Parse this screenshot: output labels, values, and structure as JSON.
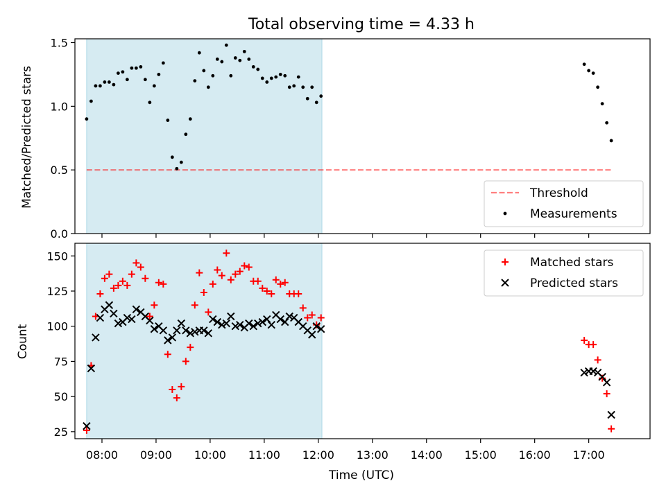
{
  "figure": {
    "title": "Total observing time = 4.33 h",
    "xlabel": "Time (UTC)",
    "x_ticks": [
      "08:00",
      "09:00",
      "10:00",
      "11:00",
      "12:00",
      "13:00",
      "14:00",
      "15:00",
      "16:00",
      "17:00"
    ]
  },
  "colors": {
    "span": "#add8e6",
    "threshold": "#ff0000",
    "measure": "#000000",
    "matched": "#ff0000",
    "predicted": "#000000"
  },
  "chart_data": [
    {
      "type": "scatter",
      "ylabel": "Matched/Predicted stars",
      "xlim": [
        "07:30",
        "18:08"
      ],
      "ylim": [
        0,
        1.53
      ],
      "y_ticks": [
        0,
        0.5,
        1.0,
        1.5
      ],
      "y_tick_labels": [
        "0.0",
        "0.5",
        "1.0",
        "1.5"
      ],
      "shaded_span": [
        "07:43",
        "12:04"
      ],
      "legend_position": "lower-right",
      "threshold": {
        "name": "Threshold",
        "value": 0.5,
        "x_range": [
          "07:43",
          "17:25"
        ],
        "style": "dashed"
      },
      "series": [
        {
          "name": "Measurements",
          "points": [
            [
              "07:43",
              0.9
            ],
            [
              "07:48",
              1.04
            ],
            [
              "07:53",
              1.16
            ],
            [
              "07:58",
              1.16
            ],
            [
              "08:03",
              1.19
            ],
            [
              "08:08",
              1.19
            ],
            [
              "08:13",
              1.17
            ],
            [
              "08:18",
              1.26
            ],
            [
              "08:23",
              1.27
            ],
            [
              "08:28",
              1.21
            ],
            [
              "08:33",
              1.3
            ],
            [
              "08:38",
              1.3
            ],
            [
              "08:43",
              1.31
            ],
            [
              "08:48",
              1.21
            ],
            [
              "08:53",
              1.03
            ],
            [
              "08:58",
              1.16
            ],
            [
              "09:03",
              1.25
            ],
            [
              "09:08",
              1.34
            ],
            [
              "09:13",
              0.89
            ],
            [
              "09:18",
              0.6
            ],
            [
              "09:23",
              0.51
            ],
            [
              "09:28",
              0.56
            ],
            [
              "09:33",
              0.78
            ],
            [
              "09:38",
              0.9
            ],
            [
              "09:43",
              1.2
            ],
            [
              "09:48",
              1.42
            ],
            [
              "09:53",
              1.28
            ],
            [
              "09:58",
              1.15
            ],
            [
              "10:03",
              1.24
            ],
            [
              "10:08",
              1.37
            ],
            [
              "10:13",
              1.35
            ],
            [
              "10:18",
              1.48
            ],
            [
              "10:23",
              1.24
            ],
            [
              "10:28",
              1.38
            ],
            [
              "10:33",
              1.36
            ],
            [
              "10:38",
              1.43
            ],
            [
              "10:43",
              1.37
            ],
            [
              "10:48",
              1.31
            ],
            [
              "10:53",
              1.29
            ],
            [
              "10:58",
              1.22
            ],
            [
              "11:03",
              1.19
            ],
            [
              "11:08",
              1.22
            ],
            [
              "11:13",
              1.23
            ],
            [
              "11:18",
              1.25
            ],
            [
              "11:23",
              1.24
            ],
            [
              "11:28",
              1.15
            ],
            [
              "11:33",
              1.16
            ],
            [
              "11:38",
              1.23
            ],
            [
              "11:43",
              1.15
            ],
            [
              "11:48",
              1.06
            ],
            [
              "11:53",
              1.15
            ],
            [
              "11:58",
              1.03
            ],
            [
              "12:03",
              1.08
            ],
            [
              "16:55",
              1.33
            ],
            [
              "17:00",
              1.28
            ],
            [
              "17:05",
              1.26
            ],
            [
              "17:10",
              1.15
            ],
            [
              "17:15",
              1.02
            ],
            [
              "17:20",
              0.87
            ],
            [
              "17:25",
              0.73
            ]
          ]
        }
      ]
    },
    {
      "type": "scatter",
      "ylabel": "Count",
      "xlim": [
        "07:30",
        "18:08"
      ],
      "ylim": [
        20,
        159
      ],
      "y_ticks": [
        25,
        50,
        75,
        100,
        125,
        150
      ],
      "y_tick_labels": [
        "25",
        "50",
        "75",
        "100",
        "125",
        "150"
      ],
      "shaded_span": [
        "07:43",
        "12:04"
      ],
      "legend_position": "upper-right",
      "series": [
        {
          "name": "Matched stars",
          "marker": "plus",
          "points": [
            [
              "07:43",
              26
            ],
            [
              "07:48",
              72
            ],
            [
              "07:53",
              107
            ],
            [
              "07:58",
              123
            ],
            [
              "08:03",
              134
            ],
            [
              "08:08",
              137
            ],
            [
              "08:13",
              127
            ],
            [
              "08:18",
              129
            ],
            [
              "08:23",
              132
            ],
            [
              "08:28",
              129
            ],
            [
              "08:33",
              137
            ],
            [
              "08:38",
              145
            ],
            [
              "08:43",
              142
            ],
            [
              "08:48",
              134
            ],
            [
              "08:53",
              107
            ],
            [
              "08:58",
              115
            ],
            [
              "09:03",
              131
            ],
            [
              "09:08",
              130
            ],
            [
              "09:13",
              80
            ],
            [
              "09:18",
              55
            ],
            [
              "09:23",
              49
            ],
            [
              "09:28",
              57
            ],
            [
              "09:33",
              75
            ],
            [
              "09:38",
              85
            ],
            [
              "09:43",
              115
            ],
            [
              "09:48",
              138
            ],
            [
              "09:53",
              124
            ],
            [
              "09:58",
              110
            ],
            [
              "10:03",
              130
            ],
            [
              "10:08",
              140
            ],
            [
              "10:13",
              136
            ],
            [
              "10:18",
              152
            ],
            [
              "10:23",
              133
            ],
            [
              "10:28",
              137
            ],
            [
              "10:33",
              139
            ],
            [
              "10:38",
              143
            ],
            [
              "10:43",
              142
            ],
            [
              "10:48",
              132
            ],
            [
              "10:53",
              132
            ],
            [
              "10:58",
              127
            ],
            [
              "11:03",
              125
            ],
            [
              "11:08",
              123
            ],
            [
              "11:13",
              133
            ],
            [
              "11:18",
              130
            ],
            [
              "11:23",
              131
            ],
            [
              "11:28",
              123
            ],
            [
              "11:33",
              123
            ],
            [
              "11:38",
              123
            ],
            [
              "11:43",
              113
            ],
            [
              "11:48",
              106
            ],
            [
              "11:53",
              108
            ],
            [
              "11:58",
              101
            ],
            [
              "12:03",
              106
            ],
            [
              "16:55",
              90
            ],
            [
              "17:00",
              87
            ],
            [
              "17:05",
              87
            ],
            [
              "17:10",
              76
            ],
            [
              "17:15",
              63
            ],
            [
              "17:20",
              52
            ],
            [
              "17:25",
              27
            ]
          ]
        },
        {
          "name": "Predicted stars",
          "marker": "cross",
          "points": [
            [
              "07:43",
              29
            ],
            [
              "07:48",
              70
            ],
            [
              "07:53",
              92
            ],
            [
              "07:58",
              106
            ],
            [
              "08:03",
              112
            ],
            [
              "08:08",
              115
            ],
            [
              "08:13",
              109
            ],
            [
              "08:18",
              102
            ],
            [
              "08:23",
              103
            ],
            [
              "08:28",
              106
            ],
            [
              "08:33",
              105
            ],
            [
              "08:38",
              112
            ],
            [
              "08:43",
              110
            ],
            [
              "08:48",
              107
            ],
            [
              "08:53",
              104
            ],
            [
              "08:58",
              98
            ],
            [
              "09:03",
              100
            ],
            [
              "09:08",
              97
            ],
            [
              "09:13",
              90
            ],
            [
              "09:18",
              92
            ],
            [
              "09:23",
              97
            ],
            [
              "09:28",
              102
            ],
            [
              "09:33",
              97
            ],
            [
              "09:38",
              95
            ],
            [
              "09:43",
              96
            ],
            [
              "09:48",
              97
            ],
            [
              "09:53",
              97
            ],
            [
              "09:58",
              95
            ],
            [
              "10:03",
              105
            ],
            [
              "10:08",
              103
            ],
            [
              "10:13",
              101
            ],
            [
              "10:18",
              102
            ],
            [
              "10:23",
              107
            ],
            [
              "10:28",
              100
            ],
            [
              "10:33",
              101
            ],
            [
              "10:38",
              99
            ],
            [
              "10:43",
              102
            ],
            [
              "10:48",
              100
            ],
            [
              "10:53",
              102
            ],
            [
              "10:58",
              103
            ],
            [
              "11:03",
              105
            ],
            [
              "11:08",
              101
            ],
            [
              "11:13",
              108
            ],
            [
              "11:18",
              105
            ],
            [
              "11:23",
              103
            ],
            [
              "11:28",
              107
            ],
            [
              "11:33",
              106
            ],
            [
              "11:38",
              103
            ],
            [
              "11:43",
              100
            ],
            [
              "11:48",
              97
            ],
            [
              "11:53",
              94
            ],
            [
              "11:58",
              100
            ],
            [
              "12:03",
              98
            ],
            [
              "16:55",
              67
            ],
            [
              "17:00",
              68
            ],
            [
              "17:05",
              68
            ],
            [
              "17:10",
              67
            ],
            [
              "17:15",
              64
            ],
            [
              "17:20",
              60
            ],
            [
              "17:25",
              37
            ]
          ]
        }
      ]
    }
  ]
}
